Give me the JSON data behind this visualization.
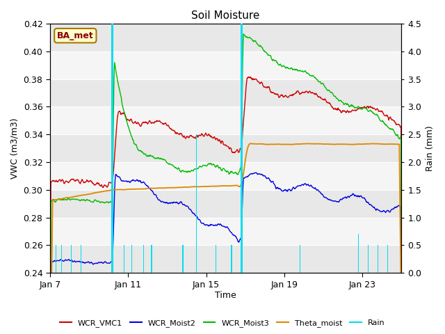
{
  "title": "Soil Moisture",
  "ylabel_left": "VWC (m3/m3)",
  "ylabel_right": "Rain (mm)",
  "xlabel": "Time",
  "ylim_left": [
    0.24,
    0.42
  ],
  "ylim_right": [
    0.0,
    4.5
  ],
  "label_box": "BA_met",
  "x_ticks_labels": [
    "Jan 7",
    "Jan 11",
    "Jan 15",
    "Jan 19",
    "Jan 23"
  ],
  "x_ticks_pos": [
    0,
    4,
    8,
    12,
    16
  ],
  "xlim": [
    0,
    18
  ],
  "colors": {
    "WCR_VMC1": "#cc0000",
    "WCR_Moist2": "#0000dd",
    "WCR_Moist3": "#00bb00",
    "Theta_moist": "#dd8800",
    "Rain": "#00ddee"
  },
  "band_colors": [
    "#e8e8e8",
    "#f5f5f5"
  ],
  "band_edges": [
    0.24,
    0.26,
    0.28,
    0.3,
    0.32,
    0.34,
    0.36,
    0.38,
    0.4,
    0.42
  ],
  "event1": 3.2,
  "event2": 9.8,
  "seed": 12345
}
